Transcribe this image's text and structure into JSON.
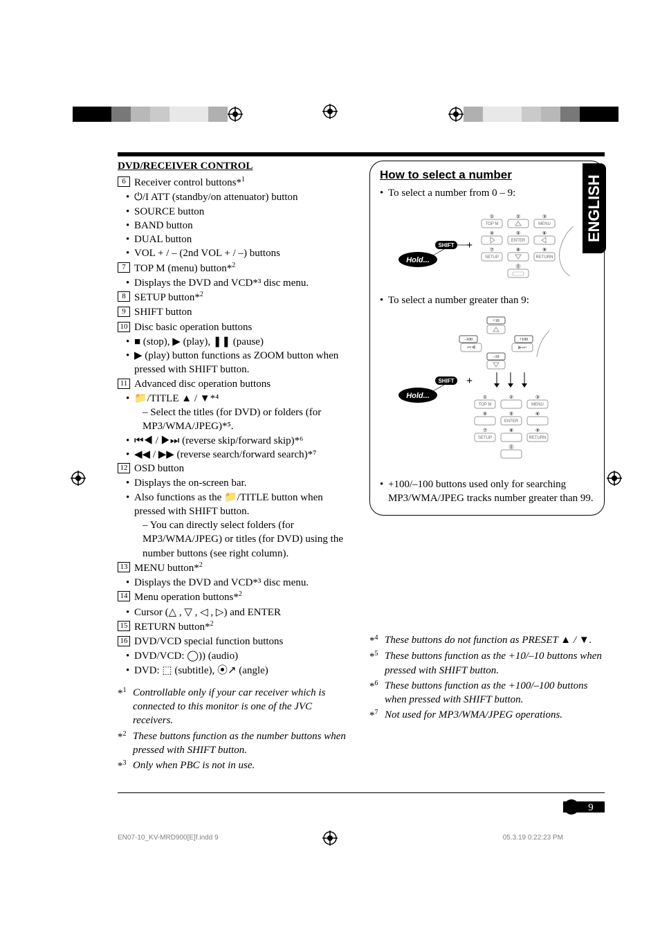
{
  "registration": {
    "left_blocks": [
      "#000000",
      "#000000",
      "#787878",
      "#b8b8b8",
      "#cacaca",
      "#e8e8e8",
      "#e8e8e8",
      "#b0b0b0"
    ],
    "right_blocks": [
      "#b0b0b0",
      "#e8e8e8",
      "#e8e8e8",
      "#cacaca",
      "#b8b8b8",
      "#787878",
      "#000000",
      "#000000"
    ]
  },
  "side_tab": "ENGLISH",
  "left": {
    "heading": "DVD/RECEIVER CONTROL",
    "items": [
      {
        "num": "6",
        "text": "Receiver control buttons*",
        "sup": "1",
        "subs": [
          {
            "b": "•",
            "t": "⏻/I ATT (standby/on attenuator) button"
          },
          {
            "b": "•",
            "t": "SOURCE button"
          },
          {
            "b": "•",
            "t": "BAND button"
          },
          {
            "b": "•",
            "t": "DUAL button"
          },
          {
            "b": "•",
            "t": "VOL + / – (2nd VOL + / –) buttons"
          }
        ]
      },
      {
        "num": "7",
        "text": "TOP M (menu) button*",
        "sup": "2",
        "subs": [
          {
            "b": "•",
            "t": "Displays the DVD and VCD*³ disc menu."
          }
        ]
      },
      {
        "num": "8",
        "text": "SETUP button*",
        "sup": "2"
      },
      {
        "num": "9",
        "text": "SHIFT button"
      },
      {
        "num": "10",
        "text": "Disc basic operation buttons",
        "subs": [
          {
            "b": "•",
            "t": "■ (stop), ▶ (play), ❚❚ (pause)"
          },
          {
            "b": "•",
            "t": "▶ (play) button functions as ZOOM button when pressed with SHIFT button."
          }
        ]
      },
      {
        "num": "11",
        "text": "Advanced disc operation buttons",
        "subs": [
          {
            "b": "•",
            "t": "📁/TITLE ▲ / ▼*⁴"
          },
          {
            "b": "",
            "t": "– Select the titles (for DVD) or folders (for MP3/WMA/JPEG)*⁵.",
            "indent": true
          },
          {
            "b": "•",
            "t": "⏮◀ / ▶⏭ (reverse skip/forward skip)*⁶"
          },
          {
            "b": "•",
            "t": "◀◀ / ▶▶ (reverse search/forward search)*⁷"
          }
        ]
      },
      {
        "num": "12",
        "text": "OSD button",
        "subs": [
          {
            "b": "•",
            "t": "Displays the on-screen bar."
          },
          {
            "b": "•",
            "t": "Also functions as the 📁/TITLE button when pressed with SHIFT button."
          },
          {
            "b": "",
            "t": "– You can directly select folders (for MP3/WMA/JPEG) or titles (for DVD) using the number buttons (see right column).",
            "indent": true
          }
        ]
      },
      {
        "num": "13",
        "text": "MENU button*",
        "sup": "2",
        "subs": [
          {
            "b": "•",
            "t": "Displays the DVD and VCD*³ disc menu."
          }
        ]
      },
      {
        "num": "14",
        "text": "Menu operation buttons*",
        "sup": "2",
        "subs": [
          {
            "b": "•",
            "t": "Cursor (△ , ▽ , ◁ , ▷) and ENTER"
          }
        ]
      },
      {
        "num": "15",
        "text": "RETURN button*",
        "sup": "2"
      },
      {
        "num": "16",
        "text": "DVD/VCD special function buttons",
        "subs": [
          {
            "b": "•",
            "t": "DVD/VCD: ◯)) (audio)"
          },
          {
            "b": "•",
            "t": "DVD: ⬚ (subtitle),  ⦿↗ (angle)"
          }
        ]
      }
    ],
    "footnotes": [
      {
        "mark": "*1",
        "t": "Controllable only if your car receiver which is connected to this monitor is one of the JVC receivers."
      },
      {
        "mark": "*2",
        "t": "These buttons function as the number buttons when pressed with SHIFT button."
      },
      {
        "mark": "*3",
        "t": "Only when PBC is not in use."
      }
    ]
  },
  "right": {
    "callout": {
      "title": "How to select a number",
      "line1": "To select a number from 0 – 9:",
      "line2": "To select a number greater than 9:",
      "note": "+100/–100 buttons used only for searching MP3/WMA/JPEG tracks number greater than 99.",
      "hold": "Hold...",
      "shift": "SHIFT",
      "btn_labels": {
        "topm": "TOP M",
        "menu": "MENU",
        "enter": "ENTER",
        "setup": "SETUP",
        "return": "RETURN",
        "p10": "+10",
        "m10": "–10",
        "p100": "+100",
        "m100": "–100"
      }
    },
    "footnotes": [
      {
        "mark": "*4",
        "t": "These buttons do not function as PRESET ▲ / ▼."
      },
      {
        "mark": "*5",
        "t": "These buttons function as the +10/–10 buttons when pressed with SHIFT button."
      },
      {
        "mark": "*6",
        "t": "These buttons function as the +100/–100 buttons when pressed with SHIFT button."
      },
      {
        "mark": "*7",
        "t": "Not used for MP3/WMA/JPEG operations."
      }
    ]
  },
  "page_number": "9",
  "footer": {
    "left": "EN07-10_KV-MRD900[E]f.indd   9",
    "right": "05.3.19   0:22:23 PM"
  },
  "styling": {
    "body_font_size": 15,
    "italic_footnotes": true
  }
}
